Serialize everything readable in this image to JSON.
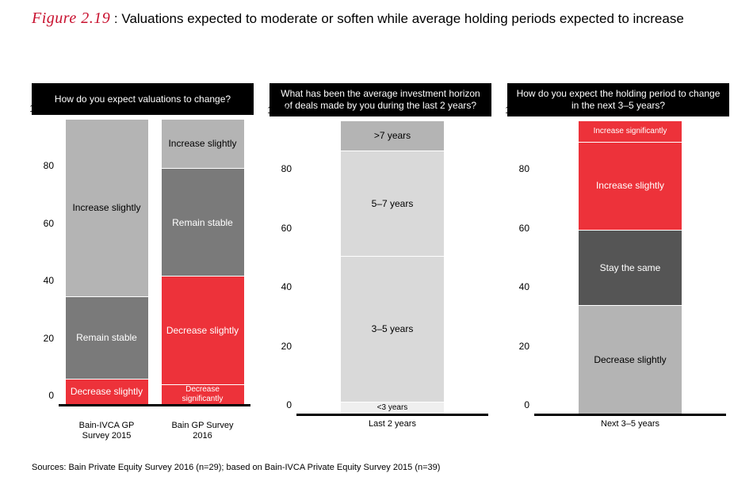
{
  "figure": {
    "number": "Figure 2.19",
    "separator": " :  ",
    "caption": "Valuations expected to moderate or soften while average holding periods expected to increase"
  },
  "colors": {
    "light_grey": "#b4b4b4",
    "mid_grey": "#7a7a7a",
    "dark_grey": "#555555",
    "very_light_grey": "#d9d9d9",
    "pale_grey": "#efefef",
    "red": "#ed323a",
    "white_text": "#ffffff",
    "black_text": "#000000"
  },
  "yaxis": {
    "ticks": [
      0,
      20,
      40,
      60,
      80,
      100
    ],
    "max": 100,
    "unit_label": "100%"
  },
  "panels": [
    {
      "title": "How do you expect valuations to change?",
      "bars": [
        {
          "xlabel": "Bain-IVCA GP Survey 2015",
          "segments": [
            {
              "label": "Increase slightly",
              "value": 62,
              "fill": "light_grey",
              "text": "black_text"
            },
            {
              "label": "Remain stable",
              "value": 29,
              "fill": "mid_grey",
              "text": "white_text"
            },
            {
              "label": "Decrease slightly",
              "value": 9,
              "fill": "red",
              "text": "white_text"
            }
          ]
        },
        {
          "xlabel": "Bain GP Survey 2016",
          "segments": [
            {
              "label": "Increase slightly",
              "value": 17,
              "fill": "light_grey",
              "text": "black_text"
            },
            {
              "label": "Remain stable",
              "value": 38,
              "fill": "mid_grey",
              "text": "white_text"
            },
            {
              "label": "Decrease slightly",
              "value": 38,
              "fill": "red",
              "text": "white_text"
            },
            {
              "label": "Decrease significantly",
              "value": 7,
              "fill": "red",
              "text": "white_text"
            }
          ]
        }
      ]
    },
    {
      "title": "What has been the average investment horizon of deals made by you during the last 2 years?",
      "bars": [
        {
          "xlabel": "Last 2 years",
          "segments": [
            {
              "label": ">7 years",
              "value": 10,
              "fill": "light_grey",
              "text": "black_text"
            },
            {
              "label": "5–7 years",
              "value": 36,
              "fill": "very_light_grey",
              "text": "black_text"
            },
            {
              "label": "3–5 years",
              "value": 50,
              "fill": "very_light_grey",
              "text": "black_text"
            },
            {
              "label": "<3 years",
              "value": 4,
              "fill": "pale_grey",
              "text": "black_text"
            }
          ]
        }
      ]
    },
    {
      "title": "How do you expect the holding period to change in the next 3–5 years?",
      "bars": [
        {
          "xlabel": "Next 3–5 years",
          "segments": [
            {
              "label": "Increase significantly",
              "value": 7,
              "fill": "red",
              "text": "white_text"
            },
            {
              "label": "Increase slightly",
              "value": 30,
              "fill": "red",
              "text": "white_text"
            },
            {
              "label": "Stay the same",
              "value": 26,
              "fill": "dark_grey",
              "text": "white_text"
            },
            {
              "label": "Decrease slightly",
              "value": 37,
              "fill": "light_grey",
              "text": "black_text"
            }
          ]
        }
      ]
    }
  ],
  "sources": "Sources: Bain Private Equity Survey 2016 (n=29); based on Bain-IVCA Private Equity Survey 2015 (n=39)"
}
